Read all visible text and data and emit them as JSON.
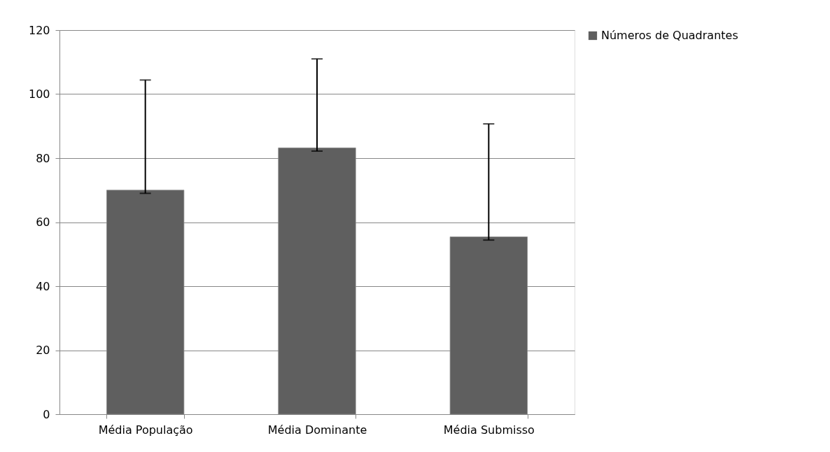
{
  "chart_data": {
    "type": "bar",
    "categories": [
      "Média População",
      "Média Dominante",
      "Média Submisso"
    ],
    "series": [
      {
        "name": "Números de  Quadrantes",
        "color": "#5f5f5f",
        "values": [
          70,
          83.2,
          55.4
        ],
        "errors": [
          [
            69,
            104.4
          ],
          [
            82.2,
            111
          ],
          [
            54.4,
            90.7
          ]
        ]
      }
    ],
    "ylim": [
      0,
      120
    ],
    "yticks": [
      0,
      20,
      40,
      60,
      80,
      100,
      120
    ],
    "grid": "y",
    "legend": "right"
  }
}
